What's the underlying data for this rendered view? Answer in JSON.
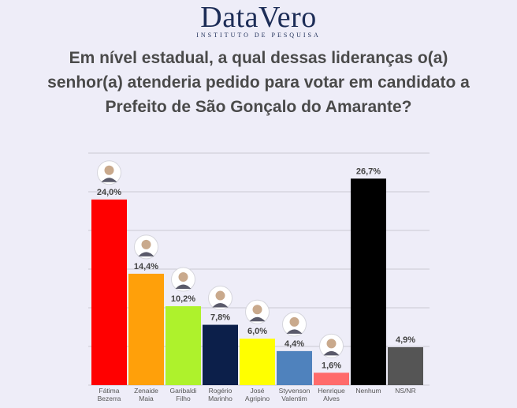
{
  "brand": {
    "name": "DataVero",
    "subtitle": "INSTITUTO DE PESQUISA"
  },
  "title_lines": [
    "Em nível estadual, a qual dessas lideranças o(a)",
    "senhor(a) atenderia pedido para votar em candidato a",
    "Prefeito de São Gonçalo do Amarante?"
  ],
  "chart_data": {
    "type": "bar",
    "title": "Em nível estadual, a qual dessas lideranças o(a) senhor(a) atenderia pedido para votar em candidato a Prefeito de São Gonçalo do Amarante?",
    "categories": [
      [
        "Fátima",
        "Bezerra"
      ],
      [
        "Zenaide",
        "Maia"
      ],
      [
        "Garibaldi",
        "Filho"
      ],
      [
        "Rogério",
        "Marinho"
      ],
      [
        "José",
        "Agripino"
      ],
      [
        "Styvenson",
        "Valentim"
      ],
      [
        "Henrique",
        "Alves"
      ],
      [
        "Nenhum"
      ],
      [
        "NS/NR"
      ]
    ],
    "values": [
      24.0,
      14.4,
      10.2,
      7.8,
      6.0,
      4.4,
      1.6,
      26.7,
      4.9
    ],
    "value_labels": [
      "24,0%",
      "14,4%",
      "10,2%",
      "7,8%",
      "6,0%",
      "4,4%",
      "1,6%",
      "26,7%",
      "4,9%"
    ],
    "colors": [
      "#ff0000",
      "#ffa00a",
      "#aef22c",
      "#0c1f4a",
      "#ffff00",
      "#4f82bd",
      "#ff6b6b",
      "#000000",
      "#555555"
    ],
    "has_photo": [
      true,
      true,
      true,
      true,
      true,
      true,
      true,
      false,
      false
    ],
    "ylim": [
      0,
      30
    ],
    "grid": true,
    "xlabel": "",
    "ylabel": ""
  }
}
